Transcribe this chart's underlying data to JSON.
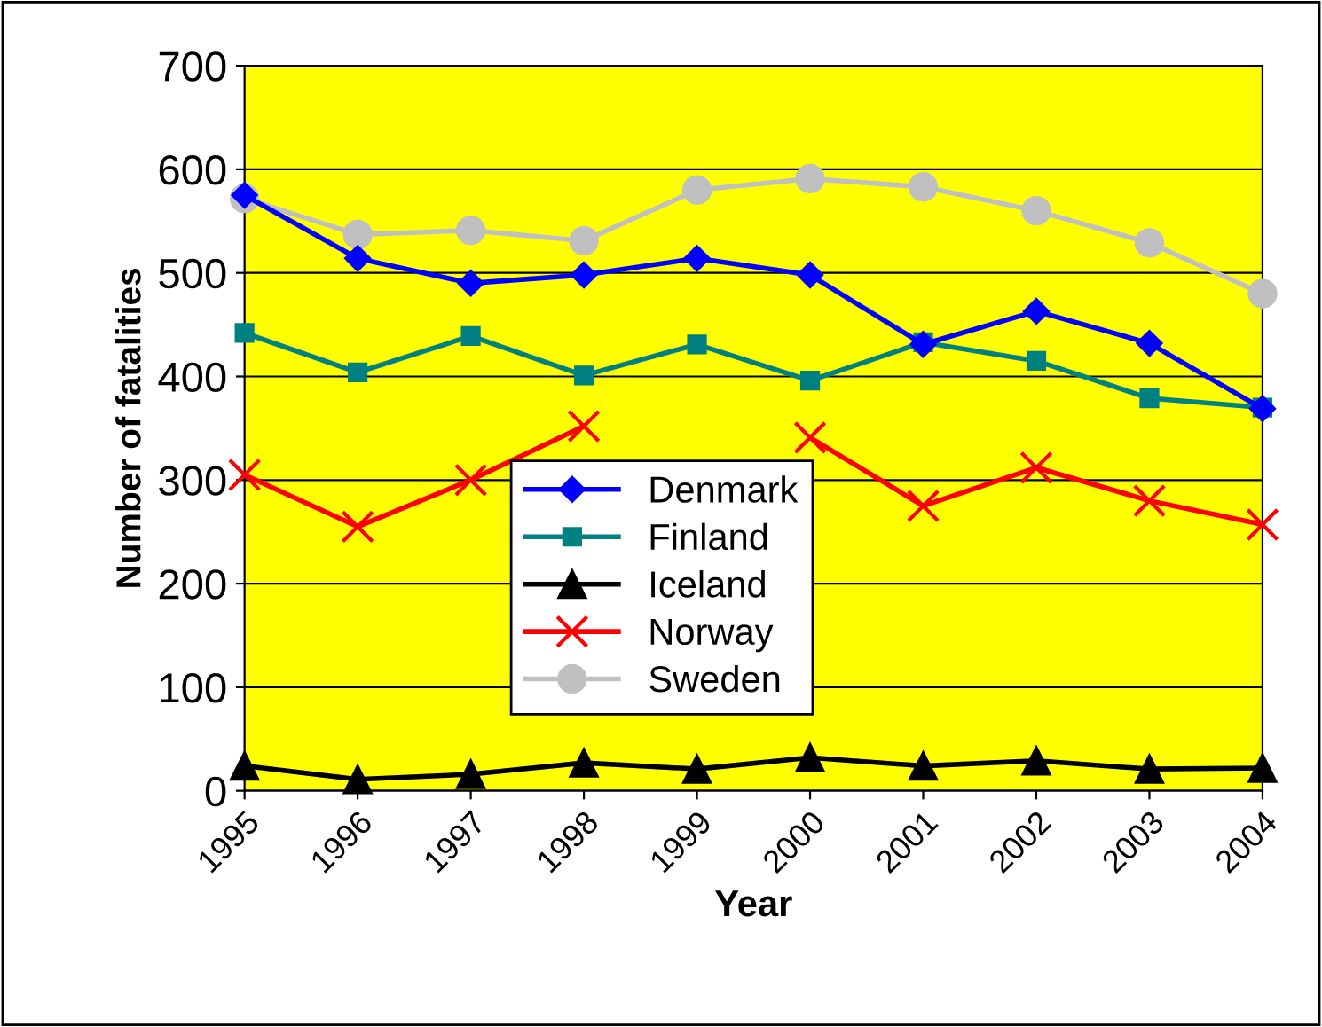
{
  "chart_data": {
    "type": "line",
    "xlabel": "Year",
    "ylabel": "Number of fatalities",
    "categories": [
      "1995",
      "1996",
      "1997",
      "1998",
      "1999",
      "2000",
      "2001",
      "2002",
      "2003",
      "2004"
    ],
    "ylim": [
      0,
      700
    ],
    "yticks": [
      0,
      100,
      200,
      300,
      400,
      500,
      600,
      700
    ],
    "grid": "y",
    "legend": "bottom center",
    "series": [
      {
        "name": "Denmark",
        "color": "#0000ff",
        "marker": "diamond",
        "values": [
          575,
          514,
          490,
          498,
          514,
          498,
          431,
          463,
          432,
          369
        ]
      },
      {
        "name": "Finland",
        "color": "#008080",
        "marker": "square",
        "values": [
          442,
          404,
          439,
          401,
          431,
          396,
          433,
          415,
          379,
          370
        ]
      },
      {
        "name": "Iceland",
        "color": "#000000",
        "marker": "triangle",
        "values": [
          24,
          11,
          16,
          27,
          21,
          32,
          24,
          29,
          21,
          22
        ]
      },
      {
        "name": "Norway",
        "color": "#ff0000",
        "marker": "cross",
        "values": [
          305,
          255,
          300,
          352,
          null,
          341,
          275,
          312,
          280,
          257
        ]
      },
      {
        "name": "Sweden",
        "color": "#c0c0c0",
        "marker": "circle",
        "values": [
          572,
          537,
          541,
          531,
          580,
          591,
          583,
          560,
          529,
          480
        ]
      }
    ]
  }
}
